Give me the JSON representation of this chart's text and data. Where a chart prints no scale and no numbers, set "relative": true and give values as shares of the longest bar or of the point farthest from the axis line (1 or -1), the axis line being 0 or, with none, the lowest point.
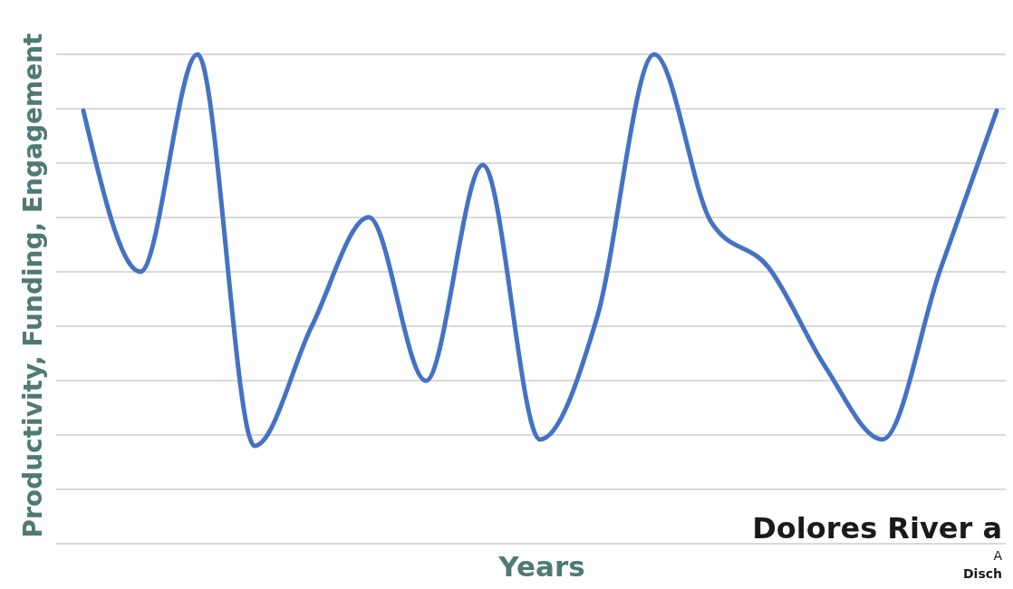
{
  "chart_data": {
    "type": "line",
    "relative": true,
    "xlabel": "Years",
    "ylabel": "Productivity, Funding, Engagement",
    "grid": "y",
    "marker": "none",
    "line_style": "solid",
    "categories": [
      null,
      null,
      null,
      null,
      null,
      null,
      null,
      null,
      null,
      null,
      null,
      null,
      null,
      null,
      null,
      null,
      null
    ],
    "series": [
      {
        "color": "#4472c4",
        "values": [
          0.885,
          0.556,
          1,
          0.2,
          0.444,
          0.667,
          0.333,
          0.774,
          0.213,
          0.463,
          1,
          0.657,
          0.565,
          0.361,
          0.213,
          0.556,
          0.885
        ]
      }
    ],
    "annotations": [
      "Dolores River a",
      "A",
      "Disch"
    ]
  }
}
